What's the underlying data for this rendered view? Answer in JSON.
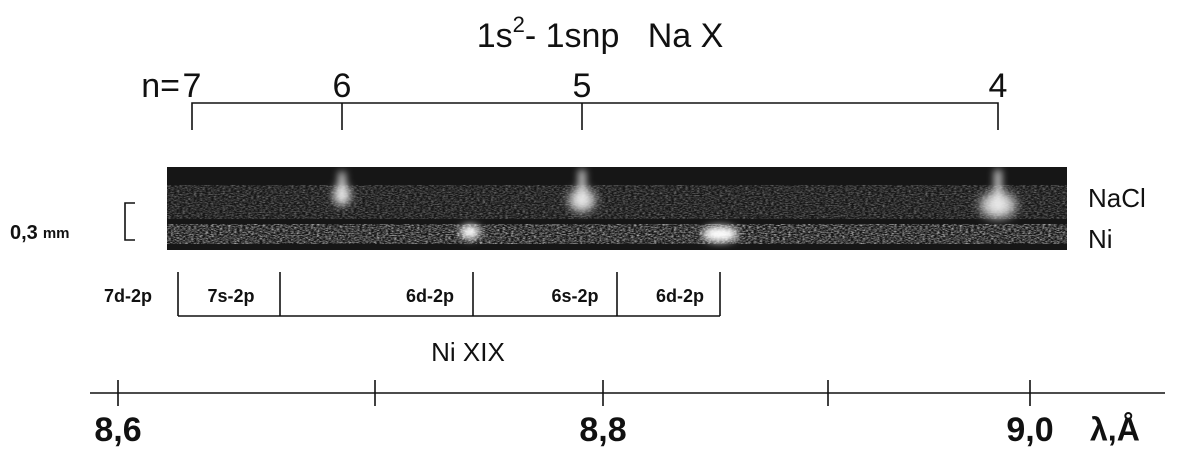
{
  "title": {
    "base": "1s",
    "sup": "2",
    "rest": "- 1snp   Na X"
  },
  "na_x": {
    "prefix": "n=",
    "levels": [
      "7",
      "6",
      "5",
      "4"
    ]
  },
  "tracks": [
    "NaCl",
    "Ni"
  ],
  "scale": {
    "value": "0,3",
    "unit": "mm"
  },
  "ni_xix": {
    "transitions": [
      "7d-2p",
      "7s-2p",
      "6d-2p",
      "6s-2p",
      "6d-2p"
    ],
    "label": "Ni XIX"
  },
  "axis": {
    "ticks": [
      "8,6",
      "8,8",
      "9,0"
    ],
    "label": "λ,Å"
  }
}
